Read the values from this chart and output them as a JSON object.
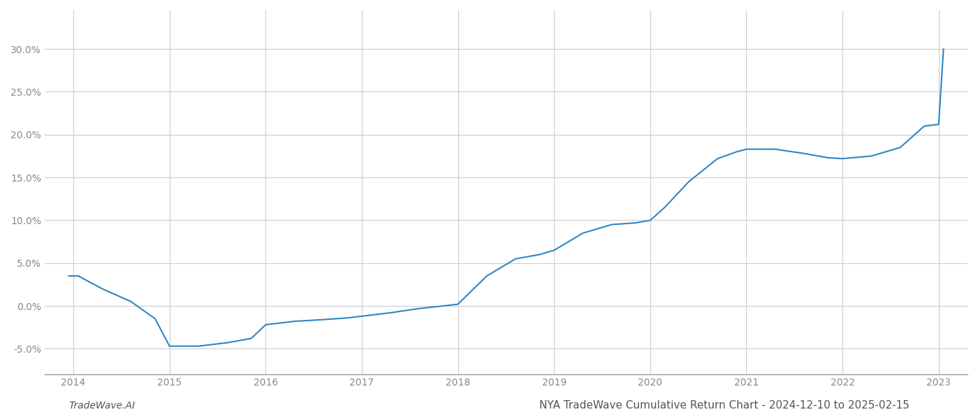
{
  "x_years": [
    2013.95,
    2014.05,
    2014.3,
    2014.6,
    2014.85,
    2015.0,
    2015.05,
    2015.3,
    2015.6,
    2015.85,
    2016.0,
    2016.3,
    2016.6,
    2016.85,
    2017.0,
    2017.3,
    2017.6,
    2017.85,
    2018.0,
    2018.3,
    2018.6,
    2018.85,
    2019.0,
    2019.3,
    2019.6,
    2019.85,
    2020.0,
    2020.15,
    2020.4,
    2020.7,
    2020.9,
    2021.0,
    2021.3,
    2021.6,
    2021.85,
    2022.0,
    2022.3,
    2022.6,
    2022.85,
    2023.0,
    2023.05
  ],
  "y_values": [
    0.035,
    0.035,
    0.02,
    0.005,
    -0.015,
    -0.047,
    -0.047,
    -0.047,
    -0.043,
    -0.038,
    -0.022,
    -0.018,
    -0.016,
    -0.014,
    -0.012,
    -0.008,
    -0.003,
    0.0,
    0.002,
    0.035,
    0.055,
    0.06,
    0.065,
    0.085,
    0.095,
    0.097,
    0.1,
    0.115,
    0.145,
    0.172,
    0.18,
    0.183,
    0.183,
    0.178,
    0.173,
    0.172,
    0.175,
    0.185,
    0.21,
    0.212,
    0.3
  ],
  "line_color": "#2e86c1",
  "line_width": 1.5,
  "title": "NYA TradeWave Cumulative Return Chart - 2024-12-10 to 2025-02-15",
  "watermark_left": "TradeWave.AI",
  "xlim": [
    2013.7,
    2023.3
  ],
  "ylim": [
    -0.08,
    0.345
  ],
  "yticks": [
    -0.05,
    0.0,
    0.05,
    0.1,
    0.15,
    0.2,
    0.25,
    0.3
  ],
  "xticks": [
    2014,
    2015,
    2016,
    2017,
    2018,
    2019,
    2020,
    2021,
    2022,
    2023
  ],
  "background_color": "#ffffff",
  "grid_color": "#cccccc",
  "tick_color": "#888888",
  "spine_color": "#999999",
  "title_fontsize": 11,
  "watermark_fontsize": 10
}
